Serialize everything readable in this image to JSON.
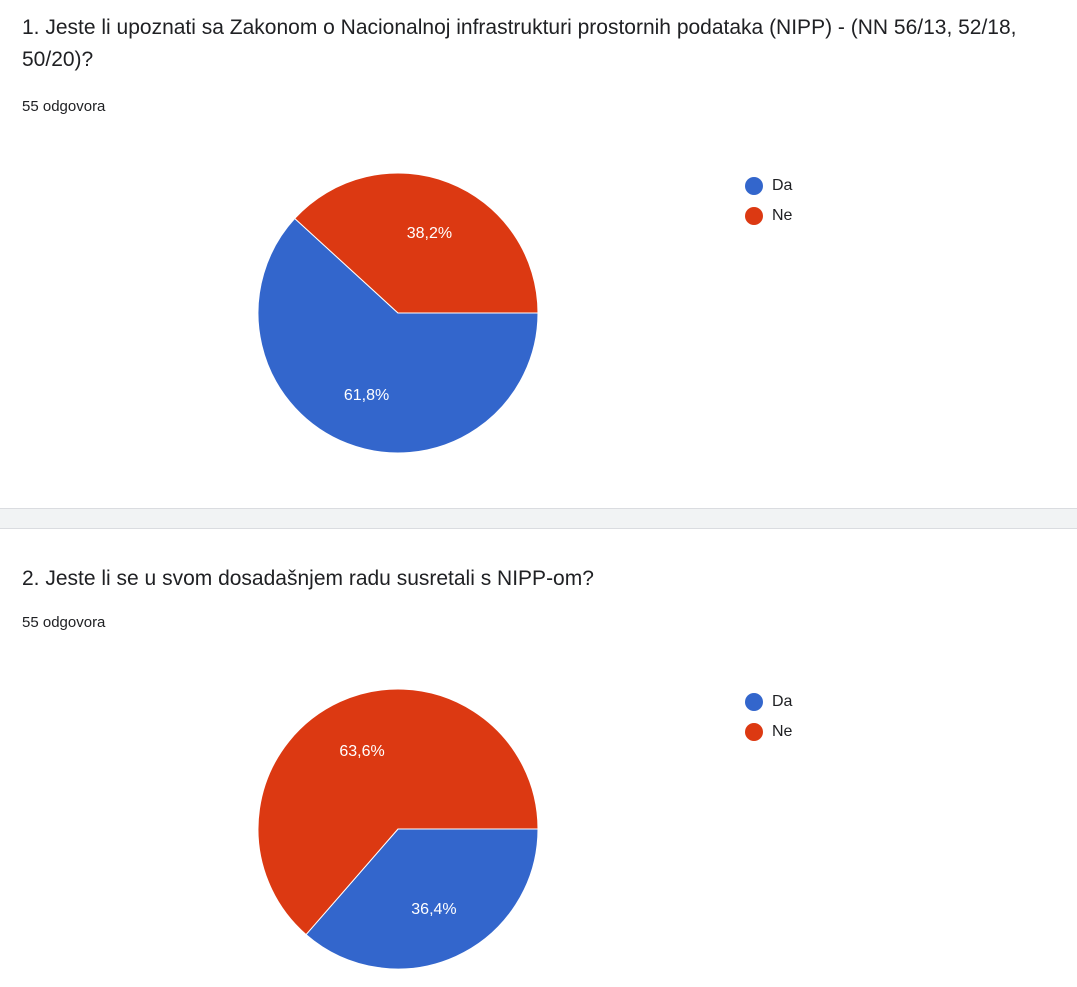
{
  "chart_data": [
    {
      "type": "pie",
      "title": "1. Jeste li upoznati sa Zakonom o Nacionalnoj infrastrukturi prostornih podataka (NIPP) - (NN 56/13, 52/18, 50/20)?",
      "subtitle": "55 odgovora",
      "categories": [
        "Da",
        "Ne"
      ],
      "values": [
        61.8,
        38.2
      ],
      "labels": [
        "61,8%",
        "38,2%"
      ],
      "colors": [
        "#3366cc",
        "#dc3912"
      ],
      "legend_position": "right"
    },
    {
      "type": "pie",
      "title": "2. Jeste li se u svom dosadašnjem radu susretali s NIPP-om?",
      "subtitle": "55 odgovora",
      "categories": [
        "Da",
        "Ne"
      ],
      "values": [
        36.4,
        63.6
      ],
      "labels": [
        "36,4%",
        "63,6%"
      ],
      "colors": [
        "#3366cc",
        "#dc3912"
      ],
      "legend_position": "right"
    }
  ]
}
